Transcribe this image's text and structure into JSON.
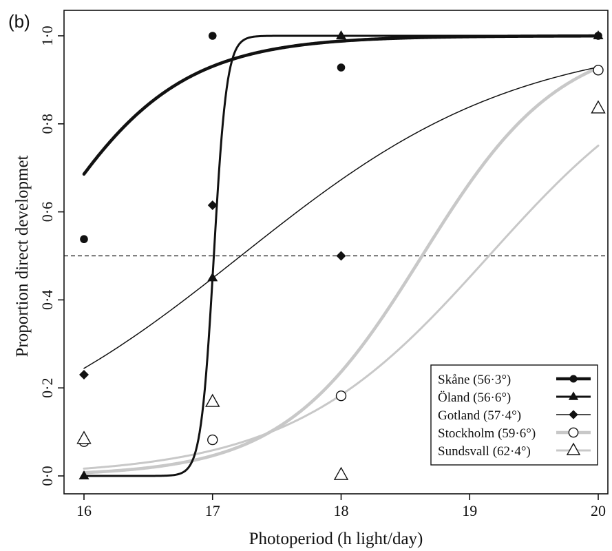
{
  "panel_label": "(b)",
  "colors": {
    "black": "#111111",
    "grey": "#c8c8c8"
  },
  "chart_data": {
    "type": "scatter",
    "xlabel": "Photoperiod (h light/day)",
    "ylabel": "Proportion direct developmet",
    "xlim": [
      16,
      20
    ],
    "ylim": [
      0,
      1
    ],
    "x_ticks": [
      16,
      17,
      18,
      19,
      20
    ],
    "x_tick_labels": [
      "16",
      "17",
      "18",
      "19",
      "20"
    ],
    "y_ticks": [
      0,
      0.2,
      0.4,
      0.6,
      0.8,
      1.0
    ],
    "y_tick_labels": [
      "0·0",
      "0·2",
      "0·4",
      "0·6",
      "0·8",
      "1·0"
    ],
    "reference_line": {
      "y": 0.5,
      "style": "dashed"
    },
    "grid": false,
    "legend_position": "bottom-right",
    "series": [
      {
        "name": "Skåne  (56·3°)",
        "marker": "filled-circle",
        "line_color": "#111111",
        "line_weight": "thick",
        "points": [
          [
            16,
            0.538
          ],
          [
            17,
            1.0
          ],
          [
            18,
            0.928
          ],
          [
            20,
            1.0
          ]
        ],
        "fit": {
          "model": "logistic",
          "midpoint": 15.57,
          "slope": 1.815
        }
      },
      {
        "name": "Öland (56·6°)",
        "marker": "filled-triangle",
        "line_color": "#111111",
        "line_weight": "medium",
        "points": [
          [
            16,
            0.0
          ],
          [
            17,
            0.45
          ],
          [
            18,
            1.0
          ],
          [
            20,
            1.0
          ]
        ],
        "fit": {
          "model": "logistic",
          "midpoint": 17.01,
          "slope": 20.0
        }
      },
      {
        "name": "Gotland (57·4°)",
        "marker": "filled-diamond",
        "line_color": "#111111",
        "line_weight": "thin",
        "points": [
          [
            16,
            0.23
          ],
          [
            17,
            0.615
          ],
          [
            18,
            0.5
          ]
        ],
        "fit": {
          "model": "logistic",
          "midpoint": 17.22,
          "slope": 0.925
        }
      },
      {
        "name": "Stockholm (59·6°)",
        "marker": "open-circle",
        "line_color": "#c8c8c8",
        "line_weight": "thick",
        "points": [
          [
            16,
            0.078
          ],
          [
            17,
            0.082
          ],
          [
            18,
            0.182
          ],
          [
            20,
            0.922
          ]
        ],
        "fit": {
          "model": "logistic",
          "midpoint": 18.63,
          "slope": 1.86
        }
      },
      {
        "name": "Sundsvall (62·4°)",
        "marker": "open-triangle",
        "line_color": "#c8c8c8",
        "line_weight": "medium",
        "points": [
          [
            16,
            0.084
          ],
          [
            17,
            0.168
          ],
          [
            18,
            0.002
          ],
          [
            20,
            0.835
          ]
        ],
        "fit": {
          "model": "logistic",
          "midpoint": 19.15,
          "slope": 1.295
        }
      }
    ]
  }
}
